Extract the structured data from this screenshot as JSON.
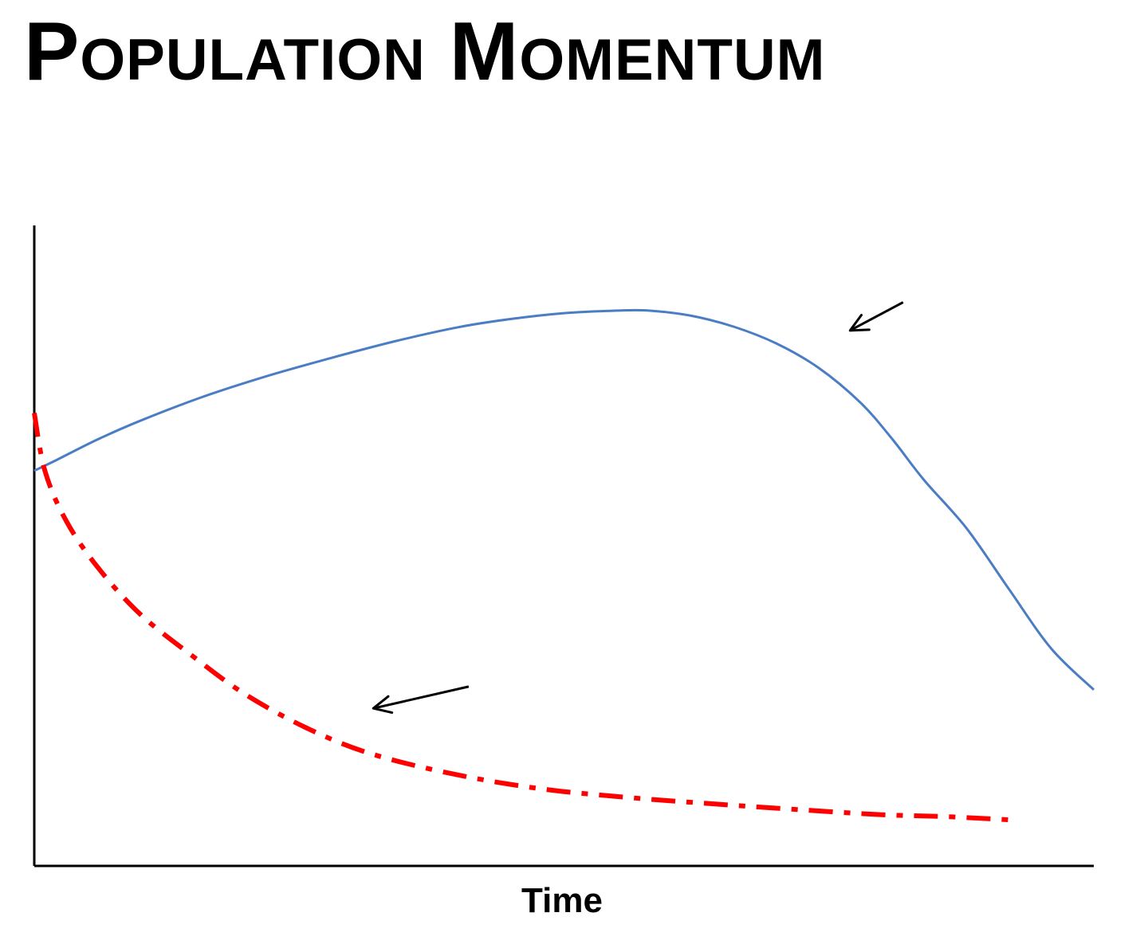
{
  "chart_data": {
    "type": "line",
    "title": "Population Momentum",
    "xlabel": "Time",
    "ylabel": "",
    "xlim": [
      0,
      100
    ],
    "ylim": [
      0,
      100
    ],
    "grid": false,
    "legend": "none",
    "series": [
      {
        "color": "#4a7dc4",
        "style": "solid",
        "x": [
          0,
          2,
          6,
          10,
          16,
          22,
          28,
          34,
          40,
          45,
          50,
          55,
          58,
          62,
          66,
          70,
          74,
          78,
          81,
          84,
          88,
          92,
          96,
          100
        ],
        "y": [
          61.7,
          63.3,
          66.6,
          69.5,
          73.3,
          76.5,
          79.3,
          81.9,
          84.1,
          85.4,
          86.3,
          86.7,
          86.7,
          85.9,
          84.2,
          81.6,
          77.8,
          72.3,
          66.6,
          60.2,
          52.7,
          43.2,
          33.9,
          27.5
        ]
      },
      {
        "color": "#ff0000",
        "style": "dash-dot",
        "x": [
          0,
          1,
          3,
          6,
          10,
          15,
          20,
          26,
          32,
          40,
          48,
          56,
          64,
          72,
          80,
          86,
          92
        ],
        "y": [
          70.7,
          61.7,
          53.9,
          46.6,
          39.3,
          32.7,
          26.7,
          21.3,
          17.4,
          14.2,
          12.0,
          10.7,
          9.7,
          8.8,
          8.0,
          7.7,
          7.2
        ]
      }
    ],
    "annotations": [
      {
        "type": "arrow",
        "from": [
          82,
          88
        ],
        "to": [
          77,
          83.6
        ]
      },
      {
        "type": "arrow",
        "from": [
          41,
          28
        ],
        "to": [
          32,
          24.6
        ]
      }
    ]
  }
}
